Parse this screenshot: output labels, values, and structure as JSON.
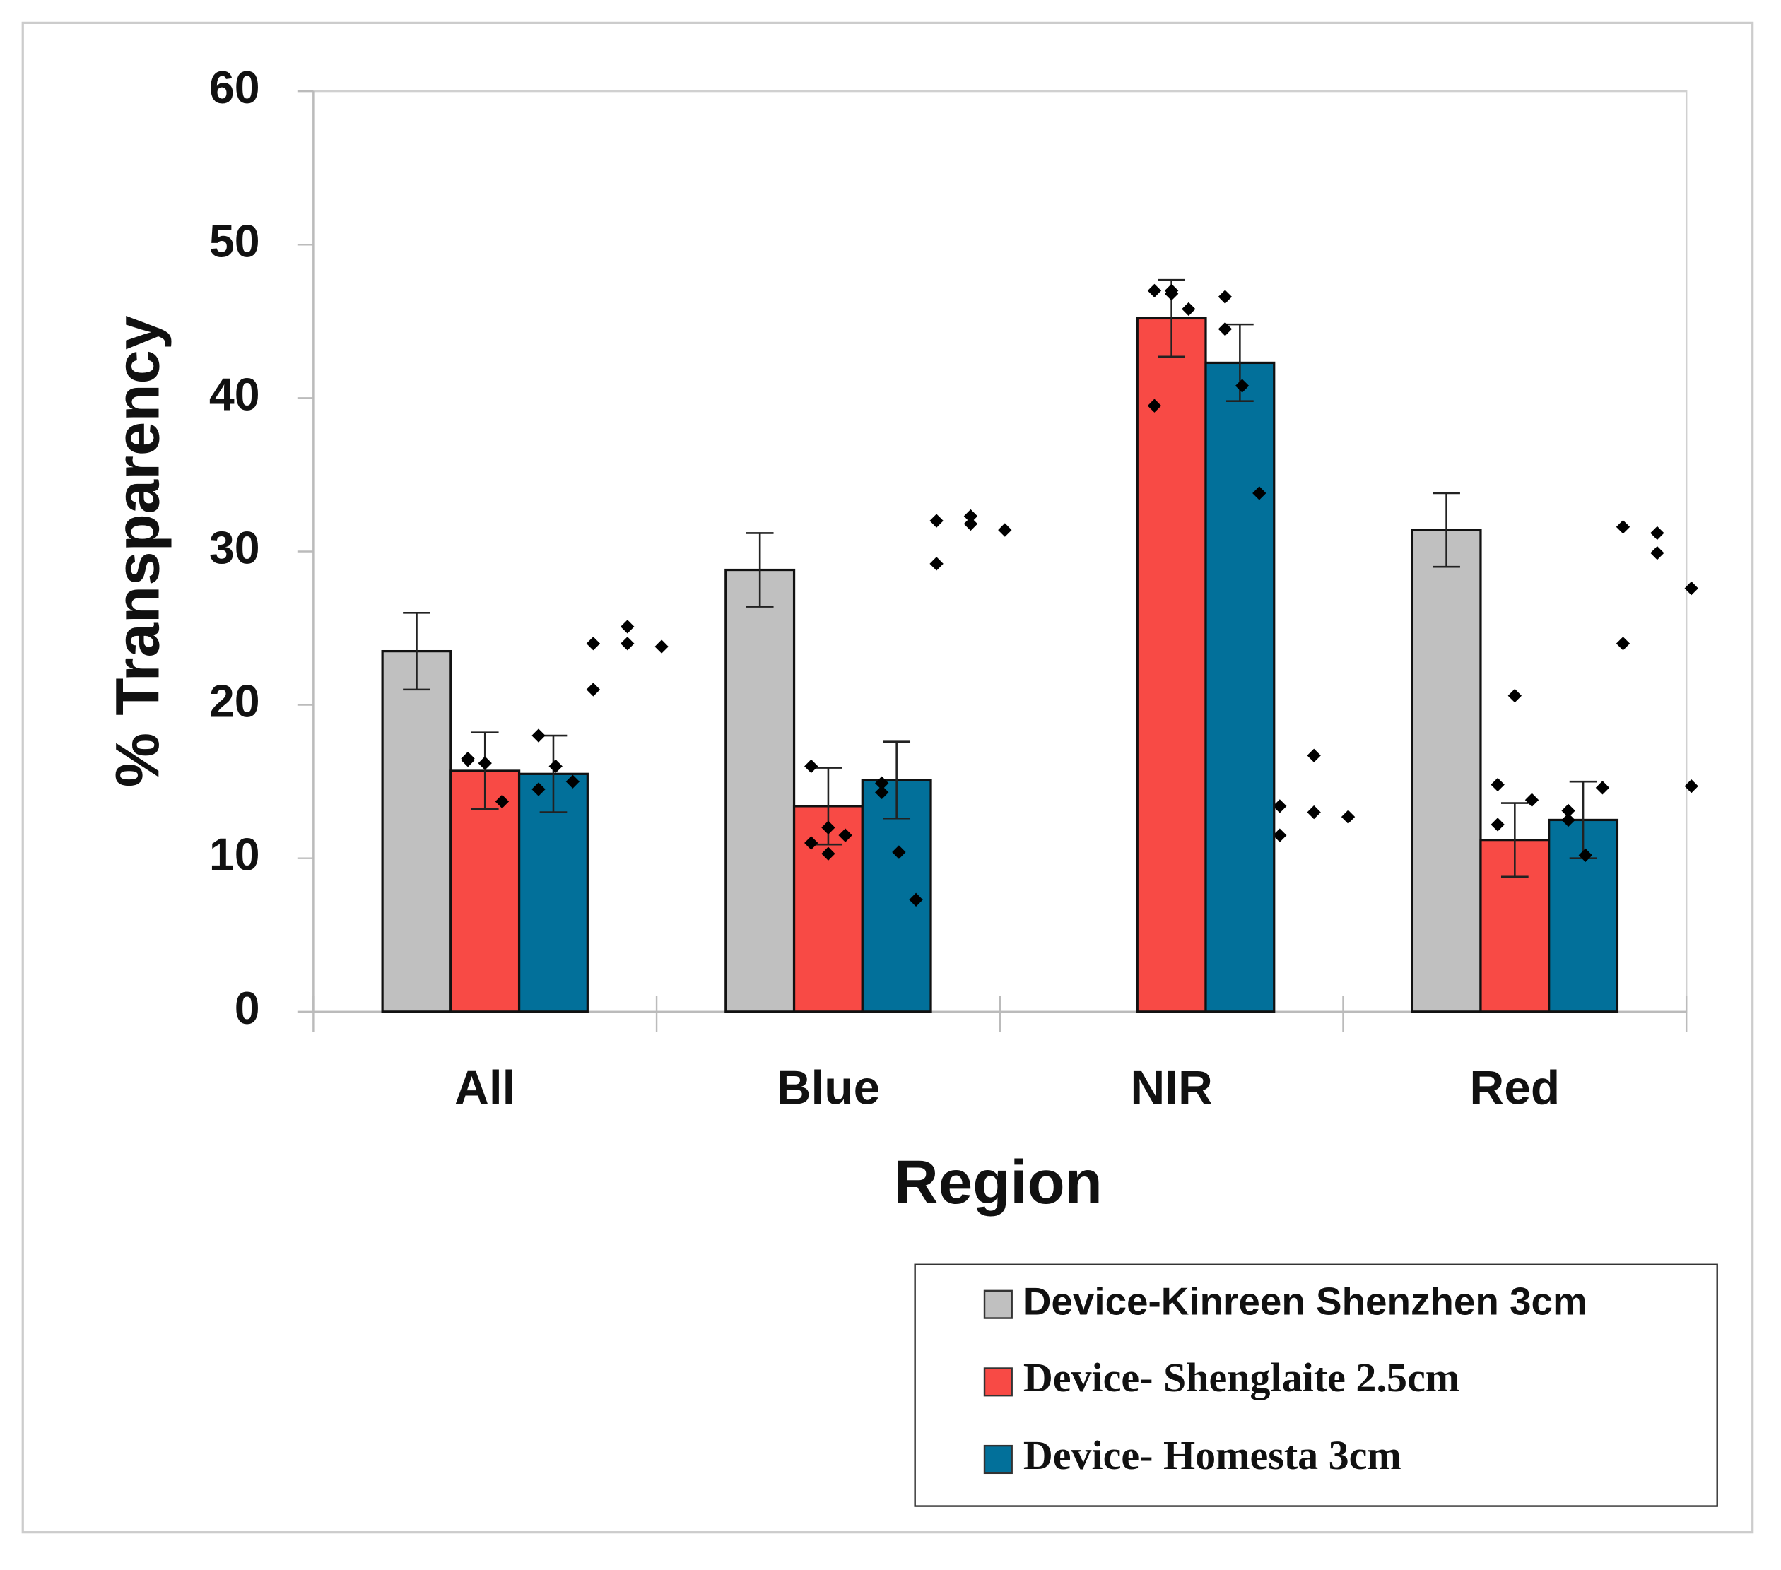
{
  "chart_data": {
    "type": "bar",
    "x_label": "Region",
    "y_label": "% Transparency",
    "categories": [
      "All",
      "Blue",
      "NIR",
      "Red"
    ],
    "ylim": [
      0,
      60
    ],
    "yticks": [
      0,
      10,
      20,
      30,
      40,
      50,
      60
    ],
    "series": [
      {
        "name": "Device-Kinreen Shenzhen 3cm",
        "color": "#c0c0c0",
        "values": [
          23.5,
          28.8,
          null,
          31.4
        ],
        "errors": [
          2.5,
          2.4,
          null,
          2.4
        ],
        "points": [
          [
            24,
            25.1,
            23.8,
            21,
            24
          ],
          [
            32,
            31.8,
            31.4,
            29.2,
            32.3
          ],
          [
            13.4,
            16.7,
            12.7,
            11.5,
            13
          ],
          [
            31.6,
            29.9,
            27.6,
            24,
            31.2,
            14.7
          ]
        ]
      },
      {
        "name": "Device- Shenglaite 2.5cm",
        "color": "#f84a45",
        "values": [
          15.7,
          13.4,
          45.2,
          11.2
        ],
        "errors": [
          2.5,
          2.5,
          2.5,
          2.4
        ],
        "points": [
          [
            16.4,
            16.2,
            13.7,
            16.5
          ],
          [
            16,
            12,
            11.5,
            11,
            10.3
          ],
          [
            47,
            47,
            45.8,
            39.5,
            46.8
          ],
          [
            14.8,
            20.6,
            13.8,
            12.2
          ]
        ]
      },
      {
        "name": "Device- Homesta 3cm",
        "color": "#02709a",
        "values": [
          15.5,
          15.1,
          42.3,
          12.5
        ],
        "errors": [
          2.5,
          2.5,
          2.5,
          2.5
        ],
        "points": [
          [
            18,
            16,
            15,
            14.5
          ],
          [
            14.3,
            10.4,
            7.3,
            14.9
          ],
          [
            44.5,
            40.8,
            33.8,
            46.6
          ],
          [
            12.5,
            10.2,
            14.6,
            13.1
          ]
        ]
      }
    ]
  }
}
